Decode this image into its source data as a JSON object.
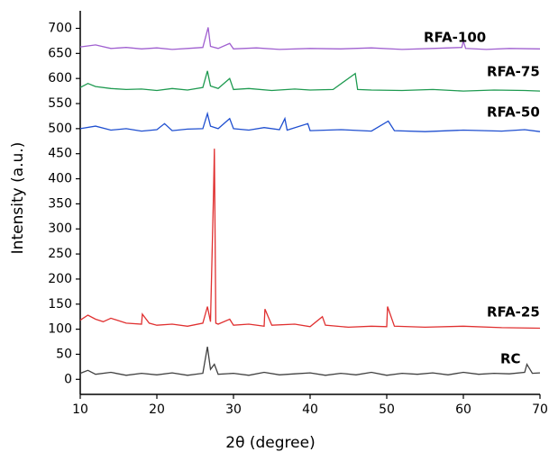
{
  "chart_data": {
    "type": "line",
    "xlabel": "2θ (degree)",
    "ylabel": "Intensity (a.u.)",
    "xlim": [
      10,
      70
    ],
    "xticks": [
      10,
      20,
      30,
      40,
      50,
      60,
      70
    ],
    "ylim": [
      -30,
      735
    ],
    "yticks": [
      0,
      50,
      100,
      150,
      200,
      250,
      300,
      350,
      400,
      450,
      500,
      550,
      600,
      650,
      700
    ],
    "series": [
      {
        "name": "RC",
        "color": "#404040",
        "x": [
          10,
          11,
          12,
          14,
          16,
          18,
          20,
          22,
          24,
          26,
          26.6,
          27,
          27.5,
          28,
          30,
          32,
          34,
          36,
          38,
          40,
          42,
          44,
          46,
          48,
          50,
          52,
          54,
          56,
          58,
          60,
          62,
          64,
          66,
          68,
          68.3,
          69,
          70
        ],
        "values": [
          12,
          18,
          10,
          14,
          8,
          12,
          9,
          13,
          8,
          12,
          65,
          20,
          30,
          10,
          12,
          8,
          14,
          9,
          11,
          13,
          8,
          12,
          9,
          14,
          8,
          12,
          10,
          13,
          9,
          14,
          10,
          12,
          11,
          14,
          30,
          12,
          13
        ]
      },
      {
        "name": "RFA-25",
        "color": "#e03030",
        "x": [
          10,
          11,
          12,
          13,
          14,
          16,
          18,
          18.1,
          19,
          20,
          22,
          24,
          26,
          26.6,
          27,
          27.4,
          27.5,
          27.7,
          28,
          29.5,
          30,
          32,
          34,
          34.1,
          35,
          38,
          40,
          41.6,
          42,
          45,
          48,
          50,
          50.1,
          51,
          55,
          60,
          65,
          70
        ],
        "values": [
          118,
          128,
          120,
          115,
          122,
          112,
          110,
          130,
          112,
          108,
          110,
          106,
          112,
          145,
          115,
          375,
          460,
          112,
          110,
          120,
          108,
          110,
          106,
          140,
          108,
          110,
          105,
          125,
          108,
          104,
          106,
          105,
          145,
          106,
          104,
          106,
          103,
          102
        ]
      },
      {
        "name": "RFA-50",
        "color": "#1f4fd0",
        "x": [
          10,
          12,
          14,
          16,
          18,
          20,
          21,
          22,
          24,
          26,
          26.6,
          27,
          28,
          29.5,
          30,
          32,
          34,
          36,
          36.7,
          37,
          39.7,
          40,
          44,
          48,
          50.2,
          51,
          55,
          60,
          65,
          68,
          70
        ],
        "values": [
          500,
          505,
          497,
          500,
          495,
          498,
          510,
          496,
          499,
          500,
          530,
          505,
          500,
          520,
          500,
          497,
          502,
          498,
          520,
          497,
          510,
          496,
          498,
          495,
          515,
          496,
          494,
          497,
          495,
          498,
          494
        ]
      },
      {
        "name": "RFA-75",
        "color": "#1e9a50",
        "x": [
          10,
          11,
          12,
          14,
          16,
          18,
          20,
          22,
          24,
          26,
          26.6,
          27,
          28,
          29.5,
          30,
          32,
          35,
          38,
          40,
          43,
          45.9,
          46.2,
          48,
          52,
          56,
          60,
          64,
          68,
          70
        ],
        "values": [
          582,
          590,
          584,
          580,
          578,
          579,
          576,
          580,
          577,
          582,
          615,
          585,
          580,
          600,
          578,
          580,
          576,
          579,
          577,
          578,
          610,
          578,
          577,
          576,
          578,
          575,
          577,
          576,
          575
        ]
      },
      {
        "name": "RFA-100",
        "color": "#a060d0",
        "x": [
          10,
          12,
          14,
          16,
          18,
          20,
          22,
          24,
          26,
          26.7,
          27,
          28,
          29.5,
          30,
          33,
          36,
          40,
          44,
          48,
          52,
          56,
          59.8,
          60,
          60.3,
          63,
          66,
          70
        ],
        "values": [
          663,
          667,
          660,
          662,
          659,
          661,
          658,
          660,
          662,
          702,
          664,
          660,
          670,
          659,
          661,
          658,
          660,
          659,
          661,
          658,
          660,
          662,
          675,
          660,
          658,
          660,
          659
        ]
      }
    ]
  }
}
